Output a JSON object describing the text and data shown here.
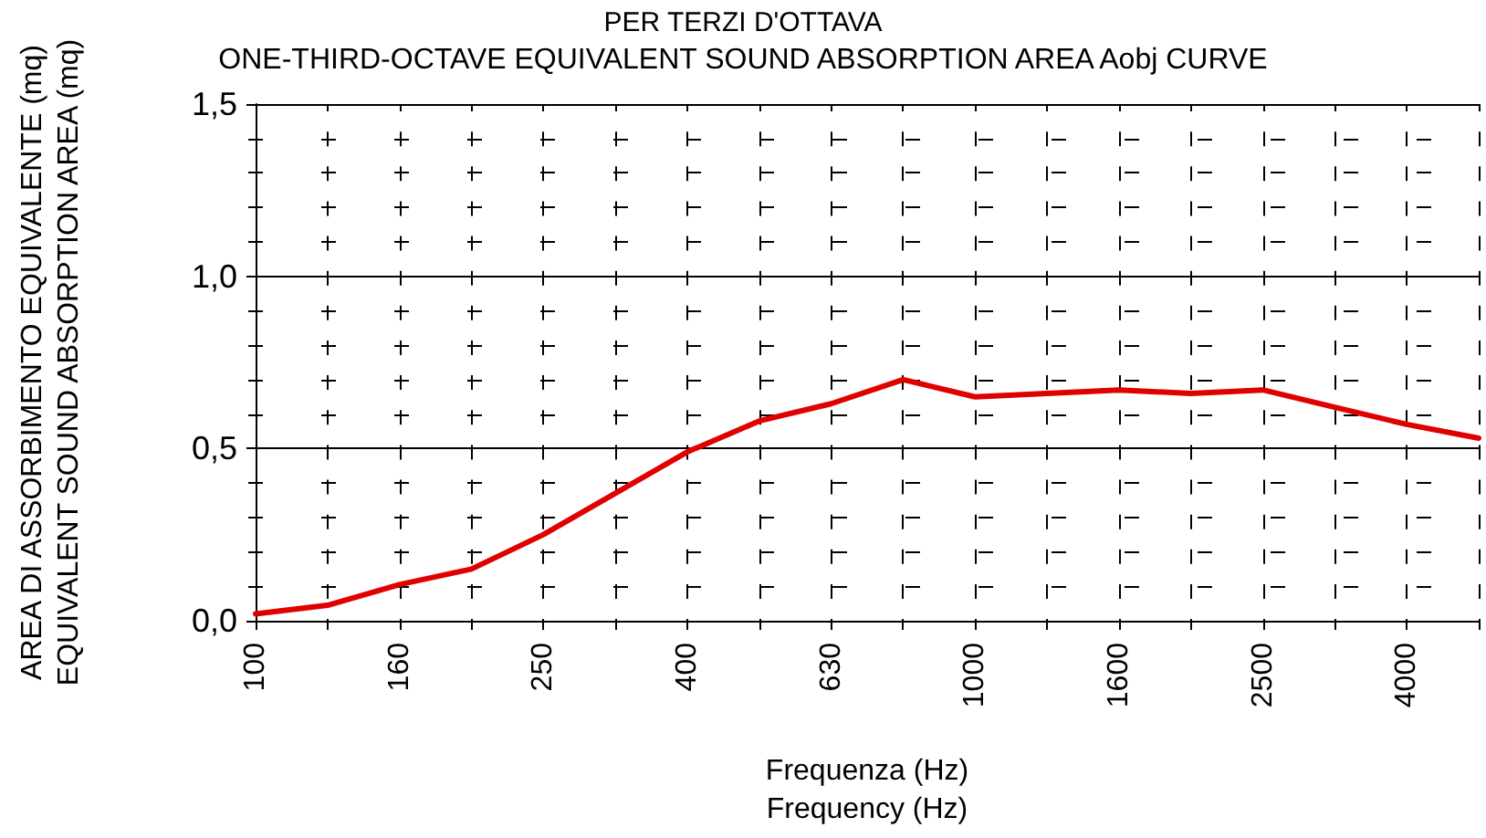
{
  "chart_data": {
    "type": "line",
    "title": "PER TERZI D'OTTAVA",
    "subtitle": "ONE-THIRD-OCTAVE EQUIVALENT SOUND ABSORPTION AREA Aobj CURVE",
    "xlabel": "Frequenza (Hz)\nFrequency (Hz)",
    "ylabel": "AREA DI ASSORBIMENTO EQUIVALENTE (mq)\nEQUIVALENT SOUND ABSORPTION AREA (mq)",
    "categories": [
      "100",
      null,
      "160",
      null,
      "250",
      null,
      "400",
      null,
      "630",
      null,
      "1000",
      null,
      "1600",
      null,
      "2500",
      null,
      "4000",
      null
    ],
    "series": [
      {
        "color": "#e00000",
        "values": [
          0.02,
          0.045,
          0.105,
          0.15,
          0.25,
          0.37,
          0.49,
          0.58,
          0.63,
          0.7,
          0.65,
          0.66,
          0.67,
          0.66,
          0.67,
          0.62,
          0.57,
          0.53
        ]
      }
    ],
    "ylim": [
      0,
      1.5
    ],
    "yticks": [
      {
        "value": 0,
        "label": "0,0"
      },
      {
        "value": 0.1,
        "label": null
      },
      {
        "value": 0.2,
        "label": null
      },
      {
        "value": 0.3,
        "label": null
      },
      {
        "value": 0.4,
        "label": null
      },
      {
        "value": 0.5,
        "label": "0,5"
      },
      {
        "value": 0.6,
        "label": null
      },
      {
        "value": 0.7,
        "label": null
      },
      {
        "value": 0.8,
        "label": null
      },
      {
        "value": 0.9,
        "label": null
      },
      {
        "value": 1.0,
        "label": "1,0"
      },
      {
        "value": 1.1,
        "label": null
      },
      {
        "value": 1.2,
        "label": null
      },
      {
        "value": 1.3,
        "label": null
      },
      {
        "value": 1.4,
        "label": null
      },
      {
        "value": 1.5,
        "label": "1,5"
      }
    ],
    "grid": true,
    "marker": "none",
    "line_style": "solid"
  }
}
